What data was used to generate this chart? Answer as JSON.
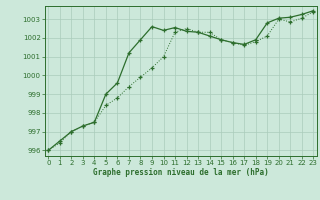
{
  "line1_x": [
    0,
    1,
    2,
    3,
    4,
    5,
    6,
    7,
    8,
    9,
    10,
    11,
    12,
    13,
    14,
    15,
    16,
    17,
    18,
    19,
    20,
    21,
    22,
    23
  ],
  "line1_y": [
    996.0,
    996.4,
    997.0,
    997.3,
    997.5,
    998.4,
    998.8,
    999.4,
    999.9,
    1000.4,
    1001.0,
    1002.3,
    1002.5,
    1002.3,
    1002.3,
    1001.9,
    1001.75,
    1001.6,
    1001.8,
    1002.1,
    1003.0,
    1002.85,
    1003.05,
    1003.4
  ],
  "line2_x": [
    0,
    1,
    2,
    3,
    4,
    5,
    6,
    7,
    8,
    9,
    10,
    11,
    12,
    13,
    14,
    15,
    16,
    17,
    18,
    19,
    20,
    21,
    22,
    23
  ],
  "line2_y": [
    996.0,
    996.5,
    997.0,
    997.3,
    997.5,
    999.0,
    999.6,
    1001.2,
    1001.9,
    1002.6,
    1002.4,
    1002.55,
    1002.35,
    1002.3,
    1002.1,
    1001.9,
    1001.75,
    1001.65,
    1001.9,
    1002.8,
    1003.05,
    1003.1,
    1003.25,
    1003.45
  ],
  "line_color": "#2d6e2d",
  "bg_color": "#cce8da",
  "grid_color": "#aaccbb",
  "xlabel": "Graphe pression niveau de la mer (hPa)",
  "ylim": [
    995.7,
    1003.7
  ],
  "yticks": [
    996,
    997,
    998,
    999,
    1000,
    1001,
    1002,
    1003
  ],
  "xticks": [
    0,
    1,
    2,
    3,
    4,
    5,
    6,
    7,
    8,
    9,
    10,
    11,
    12,
    13,
    14,
    15,
    16,
    17,
    18,
    19,
    20,
    21,
    22,
    23
  ],
  "xlim": [
    -0.3,
    23.3
  ],
  "marker_style": "+"
}
